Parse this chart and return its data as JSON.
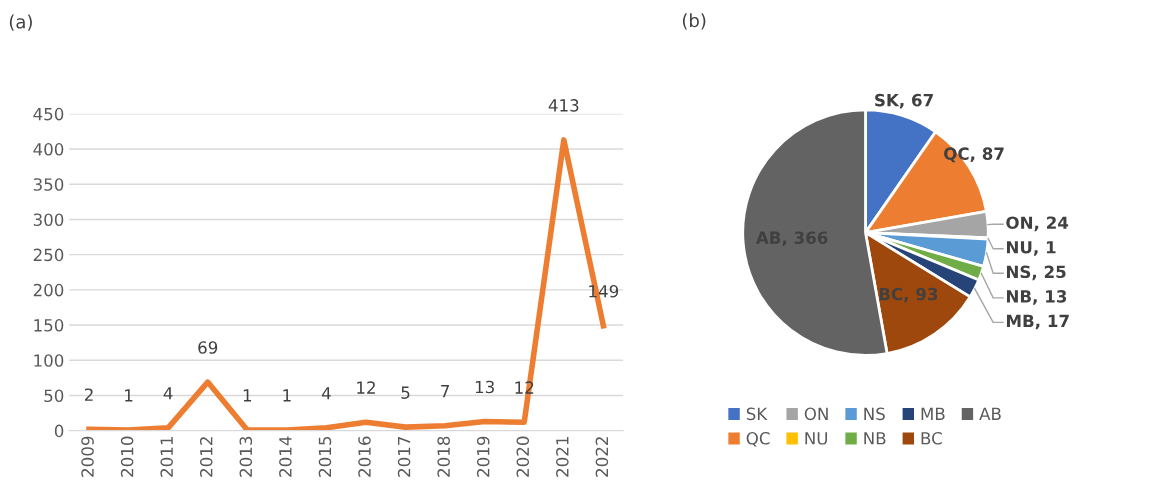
{
  "chart_data": [
    {
      "type": "line",
      "title": "(a)",
      "categories": [
        "2009",
        "2010",
        "2011",
        "2012",
        "2013",
        "2014",
        "2015",
        "2016",
        "2017",
        "2018",
        "2019",
        "2020",
        "2021",
        "2022"
      ],
      "values": [
        2,
        1,
        4,
        69,
        1,
        1,
        4,
        12,
        5,
        7,
        13,
        12,
        413,
        149
      ],
      "color": "#ed7d31",
      "ylim": [
        0,
        450
      ],
      "yticks": [
        0,
        50,
        100,
        150,
        200,
        250,
        300,
        350,
        400,
        450
      ],
      "grid": "y",
      "data_labels": true,
      "marker": "none"
    },
    {
      "type": "pie",
      "title": "(b)",
      "categories": [
        "SK",
        "QC",
        "ON",
        "NU",
        "NS",
        "NB",
        "MB",
        "BC",
        "AB"
      ],
      "values": [
        67,
        87,
        24,
        1,
        25,
        13,
        17,
        93,
        366
      ],
      "colors": [
        "#4472c4",
        "#ed7d31",
        "#a5a5a5",
        "#ffc000",
        "#5b9bd5",
        "#70ad47",
        "#264478",
        "#9e480e",
        "#636363"
      ],
      "value_labels": [
        "SK, 67",
        "QC, 87",
        "ON, 24",
        "NU, 1",
        "NS, 25",
        "NB, 13",
        "MB, 17",
        "BC, 93",
        "AB, 366"
      ],
      "legend": "bottom"
    }
  ]
}
